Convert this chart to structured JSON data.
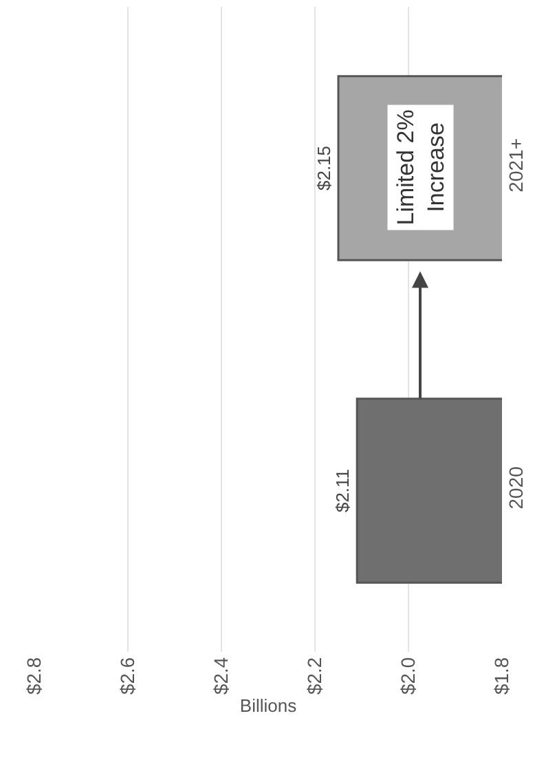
{
  "chart_data": {
    "type": "bar",
    "orientation": "horizontal",
    "xlabel": "Billions",
    "categories": [
      "2021+",
      "2020"
    ],
    "values": [
      2.15,
      2.11
    ],
    "colors": [
      "#a6a6a6",
      "#6f6f6f"
    ],
    "value_labels": [
      "$2.15",
      "$2.11"
    ],
    "xlim": [
      2.8,
      1.8
    ],
    "xticks": [
      {
        "value": 2.8,
        "label": "$2.8"
      },
      {
        "value": 2.6,
        "label": "$2.6"
      },
      {
        "value": 2.4,
        "label": "$2.4"
      },
      {
        "value": 2.2,
        "label": "$2.2"
      },
      {
        "value": 2.0,
        "label": "$2.0"
      },
      {
        "value": 1.8,
        "label": "$1.8"
      }
    ],
    "grid": "x",
    "annotations": [
      "Limited 2%\nIncrease"
    ]
  }
}
